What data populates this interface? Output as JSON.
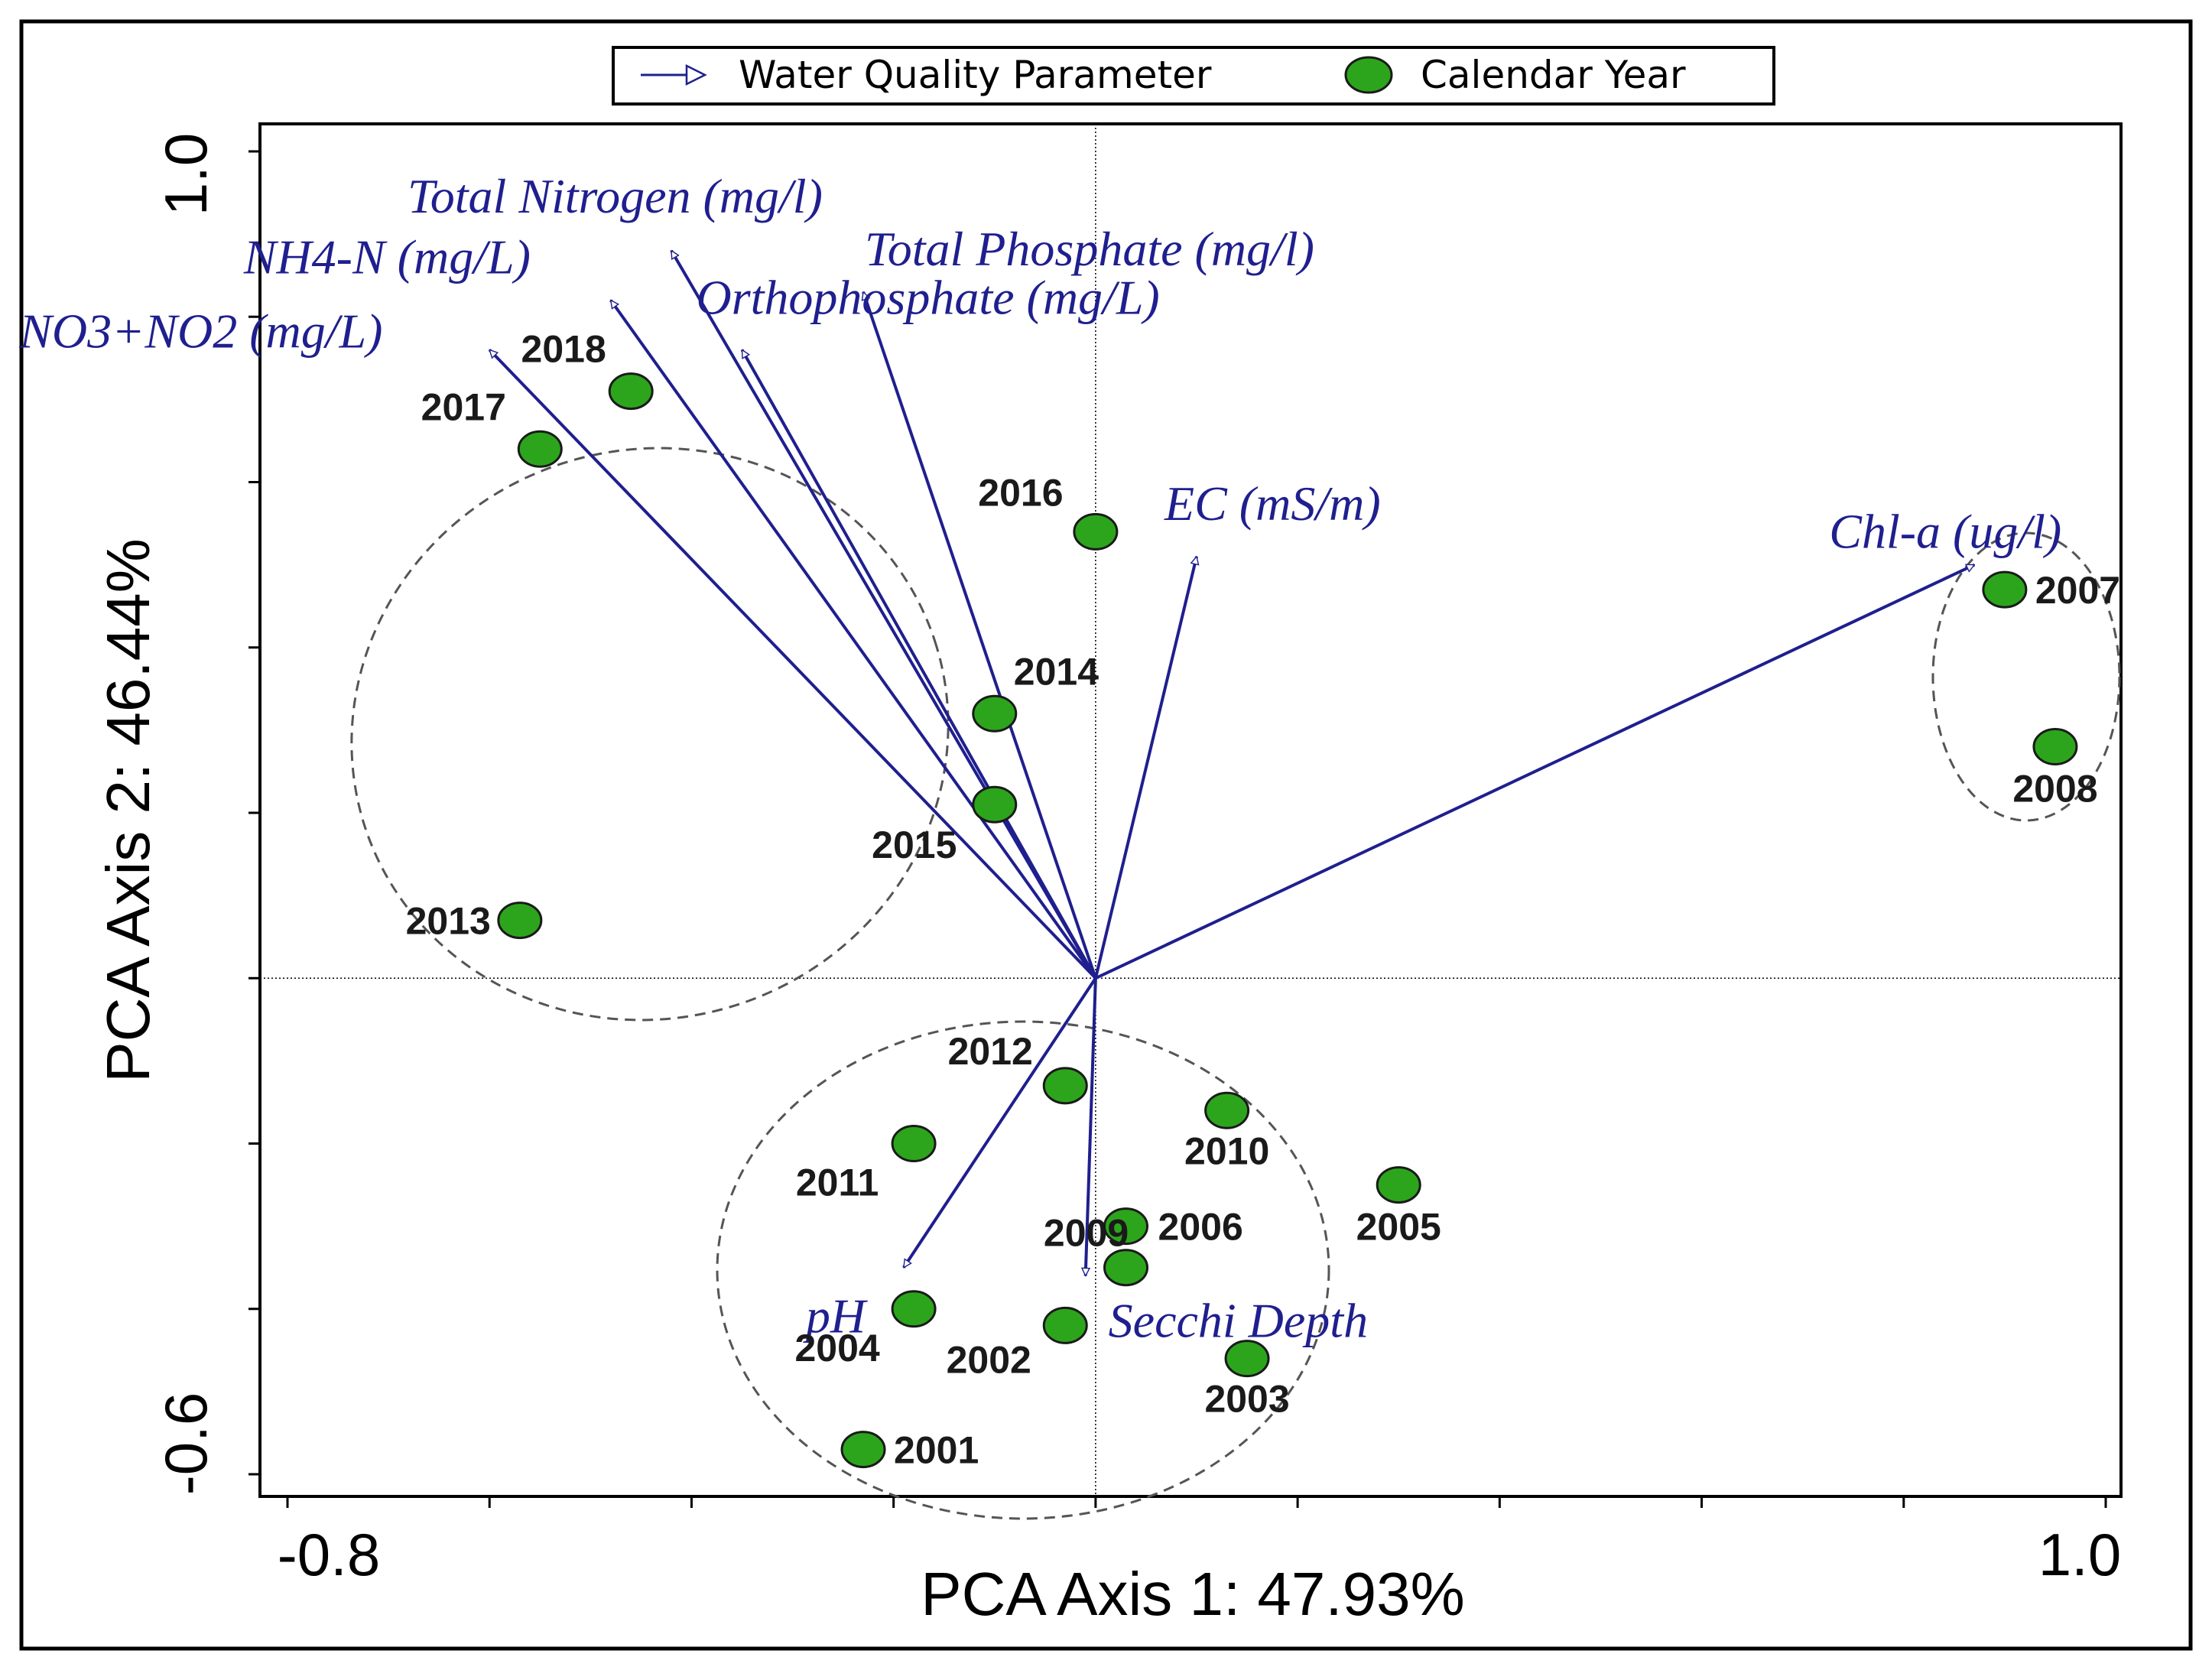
{
  "chart_data": {
    "type": "scatter",
    "subtype": "pca-biplot",
    "xlabel": "PCA Axis 1: 47.93%",
    "ylabel": "PCA Axis 2: 46.44%",
    "xlim": [
      -0.8,
      1.0
    ],
    "ylim": [
      -0.6,
      1.0
    ],
    "x_tick_labels": [
      "-0.8",
      "1.0"
    ],
    "y_tick_labels": [
      "1.0",
      "-0.6"
    ],
    "x_minor_ticks": [
      -0.8,
      -0.6,
      -0.4,
      -0.2,
      0.0,
      0.2,
      0.4,
      0.6,
      0.8,
      1.0
    ],
    "y_minor_ticks": [
      -0.6,
      -0.4,
      -0.2,
      0.0,
      0.2,
      0.4,
      0.6,
      0.8,
      1.0
    ],
    "legend": {
      "position": "top-center",
      "entries": [
        {
          "name": "Water Quality Parameter",
          "marker": "arrow"
        },
        {
          "name": "Calendar Year",
          "marker": "circle"
        }
      ]
    },
    "colors": {
      "vectors": "#1f1f8f",
      "points": "#2ca51c",
      "point_edge": "#1a1a1a",
      "ellipse": "#555555"
    },
    "vectors": [
      {
        "name": "Total Nitrogen (mg/l)",
        "x": -0.42,
        "y": 0.88
      },
      {
        "name": "NH4-N (mg/L)",
        "x": -0.48,
        "y": 0.82
      },
      {
        "name": "NO3+NO2 (mg/L)",
        "x": -0.6,
        "y": 0.76
      },
      {
        "name": "Total Phosphate (mg/l)",
        "x": -0.23,
        "y": 0.83
      },
      {
        "name": "Orthophosphate (mg/L)",
        "x": -0.35,
        "y": 0.76
      },
      {
        "name": "EC (mS/m)",
        "x": 0.1,
        "y": 0.51
      },
      {
        "name": "Chl-a (ug/l)",
        "x": 0.87,
        "y": 0.5
      },
      {
        "name": "pH",
        "x": -0.19,
        "y": -0.35
      },
      {
        "name": "Secchi Depth",
        "x": -0.01,
        "y": -0.36
      }
    ],
    "points": [
      {
        "name": "2001",
        "x": -0.23,
        "y": -0.57
      },
      {
        "name": "2002",
        "x": -0.03,
        "y": -0.42
      },
      {
        "name": "2003",
        "x": 0.15,
        "y": -0.46
      },
      {
        "name": "2004",
        "x": -0.18,
        "y": -0.4
      },
      {
        "name": "2005",
        "x": 0.3,
        "y": -0.25
      },
      {
        "name": "2006",
        "x": 0.03,
        "y": -0.3
      },
      {
        "name": "2007",
        "x": 0.9,
        "y": 0.47
      },
      {
        "name": "2008",
        "x": 0.95,
        "y": 0.28
      },
      {
        "name": "2009",
        "x": 0.03,
        "y": -0.35
      },
      {
        "name": "2010",
        "x": 0.13,
        "y": -0.16
      },
      {
        "name": "2011",
        "x": -0.18,
        "y": -0.2
      },
      {
        "name": "2012",
        "x": -0.03,
        "y": -0.13
      },
      {
        "name": "2013",
        "x": -0.57,
        "y": 0.07
      },
      {
        "name": "2014",
        "x": -0.1,
        "y": 0.32
      },
      {
        "name": "2015",
        "x": -0.1,
        "y": 0.21
      },
      {
        "name": "2016",
        "x": 0.0,
        "y": 0.54
      },
      {
        "name": "2017",
        "x": -0.55,
        "y": 0.64
      },
      {
        "name": "2018",
        "x": -0.46,
        "y": 0.71
      }
    ],
    "ellipse_groups": [
      [
        "2013",
        "2014",
        "2015",
        "2016",
        "2017",
        "2018"
      ],
      [
        "2001",
        "2002",
        "2003",
        "2004",
        "2005",
        "2006",
        "2009",
        "2010",
        "2011",
        "2012"
      ],
      [
        "2007",
        "2008"
      ]
    ]
  }
}
